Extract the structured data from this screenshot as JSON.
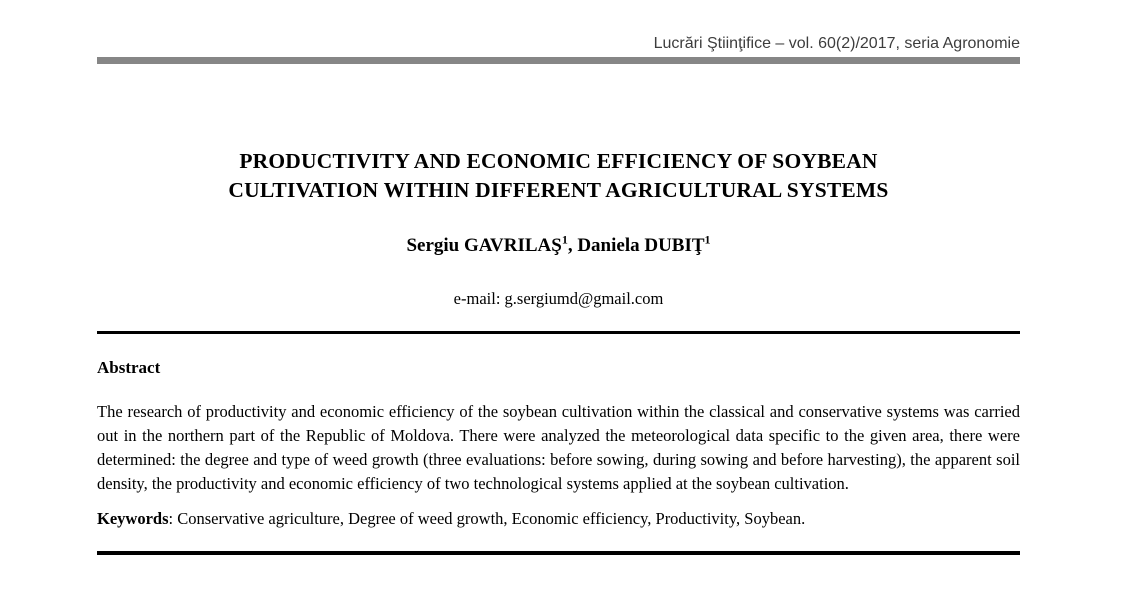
{
  "journal": {
    "header": "Lucrări Ştiinţifice – vol. 60(2)/2017, seria Agronomie"
  },
  "title": {
    "line1": "PRODUCTIVITY AND ECONOMIC EFFICIENCY OF SOYBEAN",
    "line2": "CULTIVATION WITHIN DIFFERENT AGRICULTURAL SYSTEMS"
  },
  "authors": {
    "author1_name": "Sergiu GAVRILAŞ",
    "author1_sup": "1",
    "separator": ", ",
    "author2_name": "Daniela DUBIŢ",
    "author2_sup": "1"
  },
  "contact": {
    "email_line": "e-mail: g.sergiumd@gmail.com"
  },
  "abstract": {
    "heading": "Abstract",
    "body": "The research of productivity and economic efficiency of the soybean cultivation within the classical and conservative systems was carried out in the northern part of the Republic of Moldova. There were analyzed the meteorological data specific to the given area, there were determined: the degree and type of weed growth (three evaluations: before sowing, during sowing and before harvesting), the apparent soil density, the productivity and economic efficiency of two technological systems applied at the soybean cultivation."
  },
  "keywords": {
    "label": "Keywords",
    "text": ": Conservative agriculture, Degree of weed growth, Economic efficiency, Productivity, Soybean."
  },
  "colors": {
    "header_rule": "#868686",
    "section_rule": "#000000",
    "header_text": "#3d3d3d",
    "body_text": "#000000"
  }
}
